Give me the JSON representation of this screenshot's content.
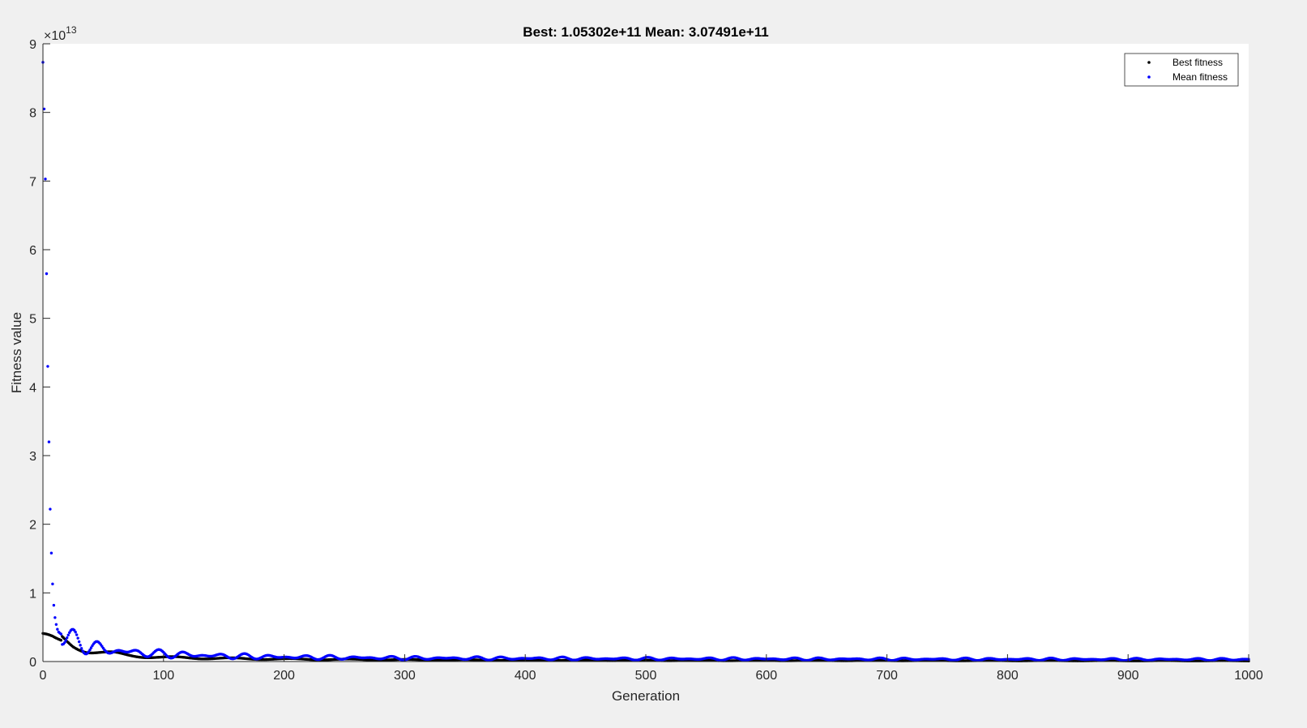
{
  "chart_data": {
    "type": "scatter",
    "title": "Best: 1.05302e+11 Mean: 3.07491e+11",
    "xlabel": "Generation",
    "ylabel": "Fitness value",
    "exponent_label": "×10",
    "exponent_power": "13",
    "xlim": [
      0,
      1000
    ],
    "ylim": [
      0,
      9
    ],
    "y_scale_factor": 10000000000000.0,
    "xticks": [
      0,
      100,
      200,
      300,
      400,
      500,
      600,
      700,
      800,
      900,
      1000
    ],
    "xtick_labels": [
      "0",
      "100",
      "200",
      "300",
      "400",
      "500",
      "600",
      "700",
      "800",
      "900",
      "1000"
    ],
    "yticks": [
      0,
      1,
      2,
      3,
      4,
      5,
      6,
      7,
      8,
      9
    ],
    "ytick_labels": [
      "0",
      "1",
      "2",
      "3",
      "4",
      "5",
      "6",
      "7",
      "8",
      "9"
    ],
    "grid": false,
    "legend_placement": "top-right",
    "series": [
      {
        "name": "Best fitness",
        "color": "#000000",
        "key_points": [
          [
            0,
            0.41
          ],
          [
            3,
            0.4
          ],
          [
            5,
            0.39
          ],
          [
            8,
            0.37
          ],
          [
            10,
            0.35
          ],
          [
            15,
            0.31
          ],
          [
            20,
            0.26
          ],
          [
            25,
            0.22
          ],
          [
            30,
            0.2
          ],
          [
            40,
            0.16
          ],
          [
            50,
            0.13
          ],
          [
            60,
            0.11
          ],
          [
            70,
            0.09
          ],
          [
            80,
            0.08
          ],
          [
            100,
            0.06
          ],
          [
            150,
            0.045
          ],
          [
            200,
            0.035
          ],
          [
            300,
            0.025
          ],
          [
            400,
            0.02
          ],
          [
            500,
            0.016
          ],
          [
            700,
            0.014
          ],
          [
            1000,
            0.0105
          ]
        ]
      },
      {
        "name": "Mean fitness",
        "color": "#0000ff",
        "key_points": [
          [
            0,
            8.73
          ],
          [
            1,
            8.05
          ],
          [
            2,
            7.03
          ],
          [
            3,
            5.65
          ],
          [
            4,
            4.3
          ],
          [
            5,
            3.2
          ],
          [
            6,
            2.22
          ],
          [
            7,
            1.58
          ],
          [
            8,
            1.13
          ],
          [
            9,
            0.82
          ],
          [
            10,
            0.64
          ],
          [
            11,
            0.54
          ],
          [
            12,
            0.47
          ],
          [
            13,
            0.43
          ],
          [
            15,
            0.4
          ],
          [
            20,
            0.36
          ],
          [
            30,
            0.27
          ],
          [
            40,
            0.22
          ],
          [
            50,
            0.18
          ],
          [
            70,
            0.14
          ],
          [
            100,
            0.11
          ],
          [
            150,
            0.08
          ],
          [
            200,
            0.065
          ],
          [
            300,
            0.05
          ],
          [
            500,
            0.04
          ],
          [
            700,
            0.035
          ],
          [
            1000,
            0.0307
          ]
        ]
      }
    ]
  }
}
